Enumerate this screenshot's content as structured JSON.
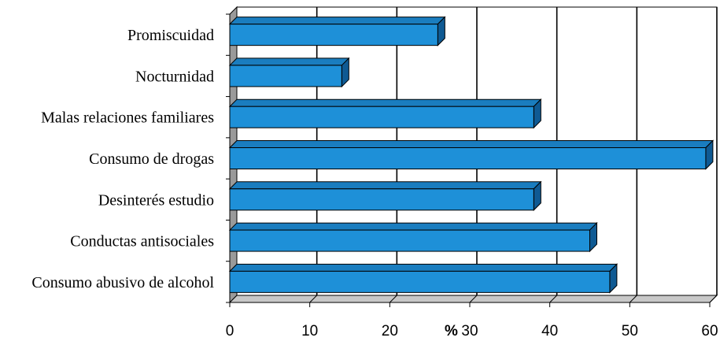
{
  "chart_data": {
    "type": "bar",
    "orientation": "horizontal",
    "style": "3d",
    "categories": [
      "Promiscuidad",
      "Nocturnidad",
      "Malas relaciones familiares",
      "Consumo de drogas",
      "Desinterés estudio",
      "Conductas antisociales",
      "Consumo abusivo de alcohol"
    ],
    "values": [
      26,
      14,
      38,
      59.5,
      38,
      45,
      47.5
    ],
    "xlim": [
      0,
      60
    ],
    "xticks": [
      0,
      10,
      20,
      30,
      40,
      50,
      60
    ],
    "xlabel": "%",
    "grid": true,
    "colors": {
      "bar_front": "#1e90d8",
      "bar_top": "#1a7dbf",
      "bar_side": "#0f5a93",
      "outline": "#000000",
      "wall": "#9a9a9a",
      "floor": "#c8c8c8"
    }
  }
}
